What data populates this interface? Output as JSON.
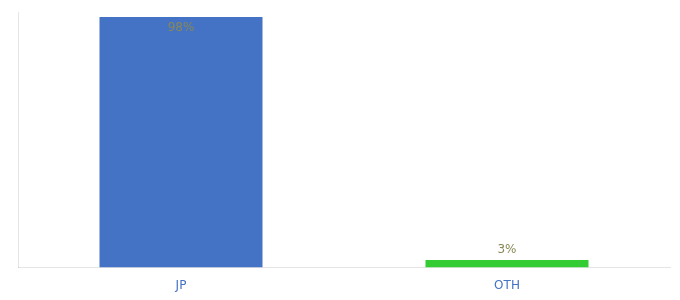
{
  "chart_data": {
    "type": "bar",
    "categories": [
      "JP",
      "OTH"
    ],
    "values": [
      98,
      3
    ],
    "colors": [
      "#4472c4",
      "#33cc33"
    ],
    "value_labels": [
      "98%",
      "3%"
    ],
    "data_labels": true,
    "ylim": [
      0,
      100
    ],
    "tick_labels": "x",
    "grid": false
  }
}
